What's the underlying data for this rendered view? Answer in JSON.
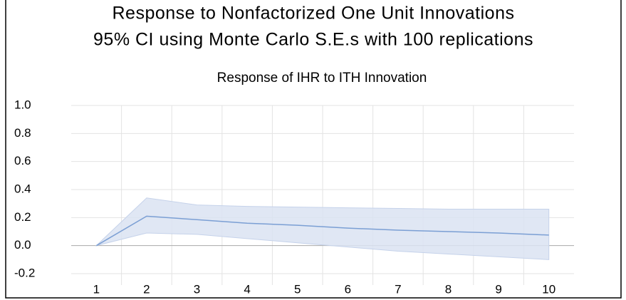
{
  "chart_data": {
    "type": "line",
    "title": "Response to Nonfactorized One Unit Innovations",
    "subtitle": "95% CI using Monte Carlo S.E.s with 100 replications",
    "chart_title": "Response of IHR to ITH Innovation",
    "categories": [
      "1",
      "2",
      "3",
      "4",
      "5",
      "6",
      "7",
      "8",
      "9",
      "10"
    ],
    "series": [
      {
        "color": "#7b9fd4",
        "values": [
          0,
          0.21,
          0.185,
          0.16,
          0.145,
          0.125,
          0.11,
          0.1,
          0.09,
          0.075
        ]
      }
    ],
    "band": {
      "color": "#dbe3f2",
      "upper": [
        0,
        0.34,
        0.29,
        0.28,
        0.275,
        0.27,
        0.265,
        0.26,
        0.26,
        0.26
      ],
      "lower": [
        0,
        0.09,
        0.08,
        0.05,
        0.02,
        -0.01,
        -0.04,
        -0.06,
        -0.08,
        -0.1
      ]
    },
    "ylim": [
      -0.2,
      1.0
    ],
    "yticks": [
      {
        "value": -0.2,
        "label": "-0.2"
      },
      {
        "value": 0,
        "label": "0.0"
      },
      {
        "value": 0.2,
        "label": "0.2"
      },
      {
        "value": 0.4,
        "label": "0.4"
      },
      {
        "value": 0.6,
        "label": "0.6"
      },
      {
        "value": 0.8,
        "label": "0.8"
      },
      {
        "value": 1.0,
        "label": "1.0"
      }
    ],
    "grid": true
  }
}
